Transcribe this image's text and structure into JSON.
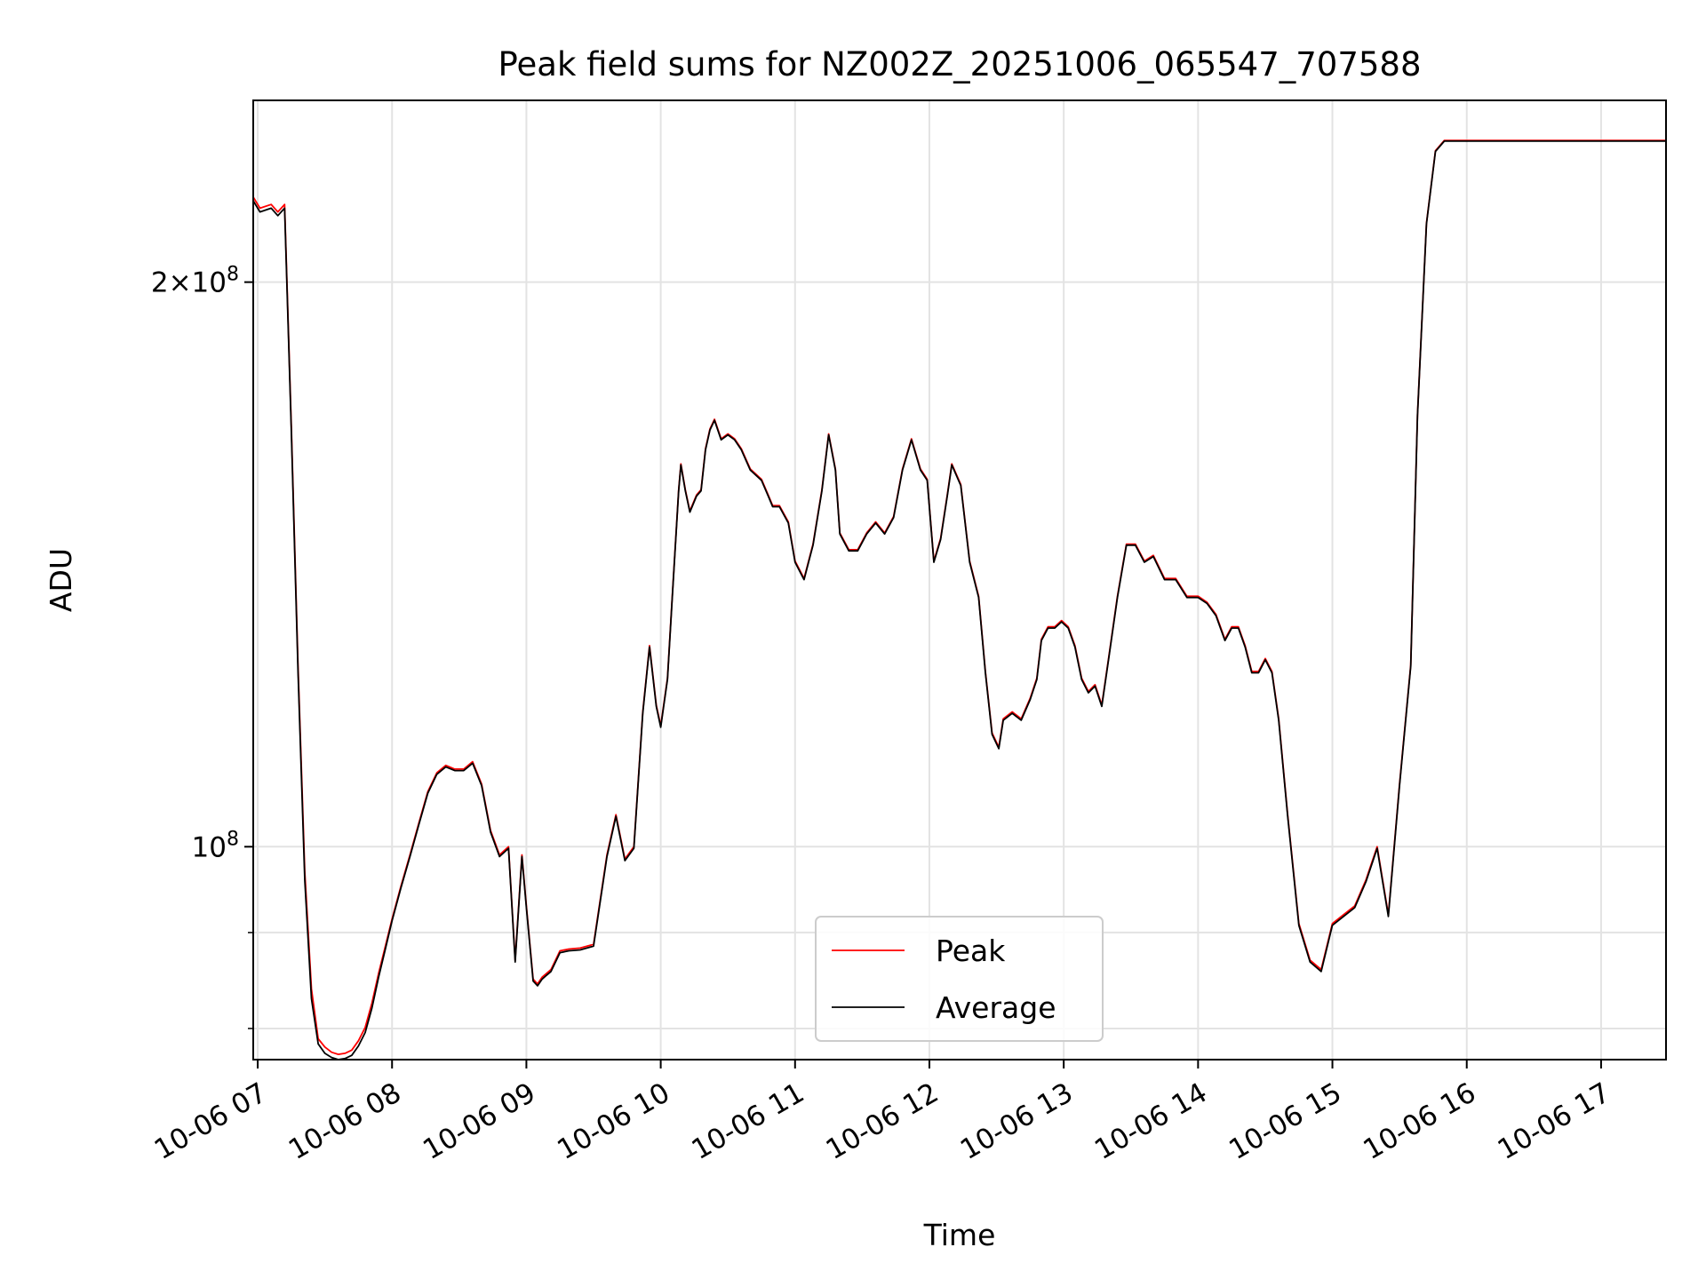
{
  "chart_data": {
    "type": "line",
    "title": "Peak field sums for NZ002Z_20251006_065547_707588",
    "xlabel": "Time",
    "ylabel": "ADU",
    "y_scale": "log",
    "grid": true,
    "legend_position": "lower-center",
    "x_tick_labels": [
      "10-06 07",
      "10-06 08",
      "10-06 09",
      "10-06 10",
      "10-06 11",
      "10-06 12",
      "10-06 13",
      "10-06 14",
      "10-06 15",
      "10-06 16",
      "10-06 17"
    ],
    "xlim": [
      "2025-10-06T06:58",
      "2025-10-06T17:29"
    ],
    "y_major_ticks": [
      {
        "value": 100000000,
        "base": "10",
        "exp": "8",
        "mult": ""
      },
      {
        "value": 200000000,
        "base": "10",
        "exp": "8",
        "mult": "2×"
      }
    ],
    "y_minor_ticks": [
      80000000,
      90000000
    ],
    "ylim": [
      77000000,
      250000000
    ],
    "times": [
      "06:58",
      "07:01",
      "07:06",
      "07:09",
      "07:12",
      "07:15",
      "07:18",
      "07:21",
      "07:24",
      "07:27",
      "07:30",
      "07:33",
      "07:36",
      "07:39",
      "07:42",
      "07:45",
      "07:48",
      "07:51",
      "07:54",
      "07:57",
      "08:00",
      "08:04",
      "08:08",
      "08:12",
      "08:16",
      "08:20",
      "08:24",
      "08:28",
      "08:32",
      "08:36",
      "08:40",
      "08:44",
      "08:48",
      "08:52",
      "08:55",
      "08:58",
      "09:00",
      "09:03",
      "09:05",
      "09:07",
      "09:09",
      "09:11",
      "09:13",
      "09:15",
      "09:19",
      "09:24",
      "09:30",
      "09:36",
      "09:40",
      "09:44",
      "09:48",
      "09:52",
      "09:55",
      "09:58",
      "10:00",
      "10:03",
      "10:05",
      "10:08",
      "10:09",
      "10:11",
      "10:13",
      "10:16",
      "10:18",
      "10:20",
      "10:22",
      "10:24",
      "10:27",
      "10:30",
      "10:33",
      "10:36",
      "10:40",
      "10:45",
      "10:48",
      "10:50",
      "10:53",
      "10:57",
      "11:00",
      "11:04",
      "11:08",
      "11:12",
      "11:15",
      "11:18",
      "11:20",
      "11:24",
      "11:28",
      "11:32",
      "11:36",
      "11:40",
      "11:44",
      "11:48",
      "11:52",
      "11:56",
      "11:59",
      "12:02",
      "12:05",
      "12:08",
      "12:10",
      "12:14",
      "12:18",
      "12:22",
      "12:25",
      "12:28",
      "12:31",
      "12:33",
      "12:37",
      "12:41",
      "12:45",
      "12:48",
      "12:50",
      "12:53",
      "12:56",
      "12:59",
      "13:02",
      "13:05",
      "13:08",
      "13:11",
      "13:14",
      "13:17",
      "13:20",
      "13:24",
      "13:28",
      "13:32",
      "13:36",
      "13:40",
      "13:45",
      "13:50",
      "13:55",
      "14:00",
      "14:04",
      "14:08",
      "14:12",
      "14:15",
      "14:18",
      "14:21",
      "14:24",
      "14:27",
      "14:30",
      "14:33",
      "14:36",
      "14:40",
      "14:45",
      "14:50",
      "14:55",
      "15:00",
      "15:05",
      "15:10",
      "15:15",
      "15:20",
      "15:25",
      "15:30",
      "15:35",
      "15:38",
      "15:42",
      "15:46",
      "15:50",
      "15:55",
      "16:00",
      "16:04",
      "16:08",
      "16:12",
      "16:16",
      "16:20",
      "16:24",
      "16:28",
      "16:32",
      "16:35",
      "16:38",
      "16:42",
      "16:46",
      "16:50",
      "16:53",
      "16:56",
      "16:59",
      "17:04",
      "17:08",
      "17:12",
      "17:16",
      "17:18",
      "17:20",
      "17:23",
      "17:29"
    ],
    "series": [
      {
        "name": "Peak",
        "color": "#ff0000",
        "values": [
          222,
          219,
          220,
          218,
          220,
          168,
          125,
          97,
          84,
          79,
          78.2,
          77.7,
          77.5,
          77.6,
          77.9,
          78.8,
          80.1,
          82.5,
          85.6,
          88.5,
          91.5,
          95.3,
          99,
          103,
          107,
          109.5,
          110.5,
          110,
          110,
          111,
          108,
          102,
          99,
          100,
          87,
          99,
          93,
          85,
          84.5,
          85.2,
          85.6,
          86,
          87,
          88,
          88.2,
          88.3,
          88.7,
          99,
          104,
          98.5,
          100,
          118,
          128,
          119,
          116,
          123,
          135,
          155,
          160,
          155,
          151,
          154,
          155,
          163,
          167,
          169,
          165,
          166,
          165,
          163,
          159,
          157,
          154,
          152,
          152,
          149,
          142,
          139,
          145,
          155,
          166,
          159,
          147,
          144,
          144,
          147,
          149,
          147,
          150,
          159,
          165,
          159,
          157,
          142,
          146,
          154,
          160,
          156,
          142,
          136,
          124,
          115,
          113,
          117,
          118,
          117,
          120,
          123,
          129,
          131,
          131,
          132,
          131,
          128,
          123,
          121,
          122,
          119,
          126,
          136,
          145,
          145,
          142,
          143,
          139,
          139,
          136,
          136,
          135,
          133,
          129,
          131,
          131,
          128,
          124,
          124,
          126,
          124,
          117,
          104,
          91,
          87,
          86,
          91,
          92,
          93,
          96,
          100,
          92,
          108,
          125,
          170,
          215,
          235,
          238,
          238,
          238,
          238,
          238,
          238,
          238,
          238,
          238,
          238,
          238,
          238,
          238,
          238,
          238,
          238,
          238,
          238,
          238,
          238,
          238,
          238,
          238,
          238,
          238,
          238,
          238
        ]
      },
      {
        "name": "Average",
        "color": "#000000",
        "values": [
          221,
          218,
          219,
          217,
          219,
          167,
          124,
          96,
          83,
          78.5,
          77.6,
          77.2,
          77,
          77.1,
          77.4,
          78.3,
          79.6,
          82,
          85.2,
          88.2,
          91.3,
          95.1,
          98.8,
          102.8,
          106.8,
          109.3,
          110.3,
          109.8,
          109.8,
          110.8,
          107.8,
          101.8,
          98.8,
          99.8,
          86.8,
          98.8,
          92.8,
          84.8,
          84.3,
          85,
          85.4,
          85.8,
          86.8,
          87.8,
          88,
          88.1,
          88.5,
          98.8,
          103.8,
          98.3,
          99.8,
          117.8,
          127.8,
          118.8,
          115.8,
          122.8,
          134.8,
          154.8,
          159.8,
          154.8,
          150.8,
          153.8,
          154.8,
          162.8,
          166.8,
          168.8,
          164.8,
          165.8,
          164.8,
          162.8,
          158.8,
          156.8,
          153.8,
          151.8,
          151.8,
          148.8,
          141.8,
          138.8,
          144.8,
          154.8,
          165.8,
          158.8,
          146.8,
          143.8,
          143.8,
          146.8,
          148.8,
          146.8,
          149.8,
          158.8,
          164.8,
          158.8,
          156.8,
          141.8,
          145.8,
          153.8,
          159.8,
          155.8,
          141.8,
          135.8,
          123.8,
          114.8,
          112.8,
          116.8,
          117.8,
          116.8,
          119.8,
          122.8,
          128.8,
          130.8,
          130.8,
          131.8,
          130.8,
          127.8,
          122.8,
          120.8,
          121.8,
          118.8,
          125.8,
          135.8,
          144.8,
          144.8,
          141.8,
          142.8,
          138.8,
          138.8,
          135.8,
          135.8,
          134.8,
          132.8,
          128.8,
          130.8,
          130.8,
          127.8,
          123.8,
          123.8,
          125.8,
          123.8,
          116.8,
          103.8,
          90.8,
          86.8,
          85.8,
          90.8,
          91.8,
          92.8,
          95.8,
          99.8,
          91.8,
          107.8,
          124.8,
          169.8,
          214.8,
          234.8,
          237.8,
          237.8,
          237.8,
          237.8,
          237.8,
          237.8,
          237.8,
          237.8,
          237.8,
          237.8,
          237.8,
          237.8,
          237.8,
          237.8,
          237.8,
          237.8,
          237.8,
          237.8,
          237.8,
          237.8,
          237.8,
          237.8,
          237.8,
          237.8,
          237.8,
          237.8,
          237.8
        ]
      }
    ]
  }
}
